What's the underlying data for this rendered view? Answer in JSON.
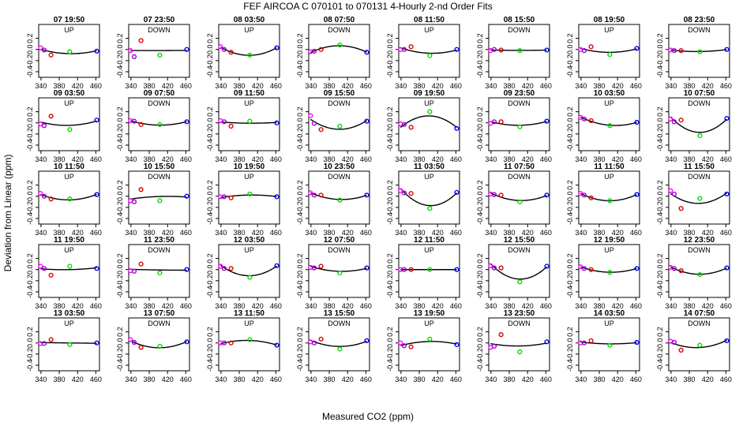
{
  "chart_data": {
    "type": "scatter",
    "title": "FEF   AIRCOA C   070101 to 070131   4-Hourly 2-nd Order Fits",
    "xlabel": "Measured CO2 (ppm)",
    "ylabel": "Deviation from Linear (ppm)",
    "xlim": [
      335,
      468
    ],
    "ylim": [
      -0.5,
      0.45
    ],
    "xticks": [
      340,
      380,
      420,
      460
    ],
    "yticks": [
      -0.4,
      -0.2,
      0.0,
      0.2
    ],
    "xtick_labels": [
      "340",
      "380",
      "420",
      "460"
    ],
    "ytick_labels": [
      "-0.4",
      "-0.2",
      "0.0",
      "0.2"
    ],
    "point_x": [
      339,
      347,
      362,
      403,
      462
    ],
    "point_colors": [
      "#ff00ff",
      "#9900cc",
      "#dd0000",
      "#00dd00",
      "#0000ee"
    ],
    "panels": [
      {
        "title": "07 19:50",
        "dir": "UP",
        "y": [
          0.03,
          -0.01,
          -0.1,
          -0.04,
          -0.03
        ]
      },
      {
        "title": "07 23:50",
        "dir": "DOWN",
        "y": [
          -0.02,
          -0.13,
          0.16,
          -0.1,
          0.0
        ]
      },
      {
        "title": "08 03:50",
        "dir": "UP",
        "y": [
          0.05,
          0.0,
          -0.05,
          -0.1,
          0.03
        ]
      },
      {
        "title": "08 07:50",
        "dir": "DOWN",
        "y": [
          -0.04,
          -0.03,
          0.0,
          0.08,
          -0.05
        ]
      },
      {
        "title": "08 11:50",
        "dir": "UP",
        "y": [
          0.0,
          0.0,
          0.05,
          -0.11,
          0.0
        ]
      },
      {
        "title": "08 15:50",
        "dir": "DOWN",
        "y": [
          -0.02,
          0.0,
          -0.01,
          -0.02,
          -0.01
        ]
      },
      {
        "title": "08 19:50",
        "dir": "UP",
        "y": [
          0.0,
          -0.02,
          0.05,
          -0.09,
          0.02
        ]
      },
      {
        "title": "08 23:50",
        "dir": "DOWN",
        "y": [
          -0.01,
          -0.02,
          -0.02,
          -0.04,
          0.0
        ]
      },
      {
        "title": "09 03:50",
        "dir": "UP",
        "y": [
          -0.02,
          -0.05,
          0.12,
          -0.12,
          0.05
        ]
      },
      {
        "title": "09 07:50",
        "dir": "DOWN",
        "y": [
          0.04,
          0.03,
          -0.03,
          -0.03,
          0.02
        ]
      },
      {
        "title": "09 11:50",
        "dir": "UP",
        "y": [
          0.04,
          0.02,
          -0.06,
          0.03,
          0.0
        ]
      },
      {
        "title": "09 15:50",
        "dir": "DOWN",
        "y": [
          0.13,
          -0.01,
          -0.12,
          -0.06,
          0.03
        ]
      },
      {
        "title": "09 19:50",
        "dir": "UP",
        "y": [
          -0.02,
          -0.03,
          -0.08,
          0.2,
          -0.1
        ]
      },
      {
        "title": "09 23:50",
        "dir": "DOWN",
        "y": [
          -0.01,
          0.02,
          0.02,
          -0.07,
          0.03
        ]
      },
      {
        "title": "10 03:50",
        "dir": "UP",
        "y": [
          0.1,
          0.07,
          0.04,
          -0.05,
          0.01
        ]
      },
      {
        "title": "10 07:50",
        "dir": "DOWN",
        "y": [
          0.07,
          0.02,
          0.05,
          -0.23,
          0.08
        ]
      },
      {
        "title": "10 11:50",
        "dir": "UP",
        "y": [
          0.05,
          0.0,
          -0.05,
          -0.05,
          0.03
        ]
      },
      {
        "title": "10 15:50",
        "dir": "DOWN",
        "y": [
          -0.08,
          -0.1,
          0.12,
          -0.08,
          0.0
        ]
      },
      {
        "title": "10 19:50",
        "dir": "UP",
        "y": [
          -0.01,
          -0.01,
          -0.03,
          0.04,
          -0.01
        ]
      },
      {
        "title": "10 23:50",
        "dir": "DOWN",
        "y": [
          0.06,
          0.02,
          0.02,
          -0.07,
          0.02
        ]
      },
      {
        "title": "11 03:50",
        "dir": "UP",
        "y": [
          0.1,
          0.06,
          0.05,
          -0.22,
          0.07
        ]
      },
      {
        "title": "11 07:50",
        "dir": "DOWN",
        "y": [
          0.04,
          0.03,
          0.02,
          -0.1,
          0.02
        ]
      },
      {
        "title": "11 11:50",
        "dir": "UP",
        "y": [
          0.05,
          0.02,
          -0.03,
          -0.08,
          0.03
        ]
      },
      {
        "title": "11 15:50",
        "dir": "DOWN",
        "y": [
          0.1,
          0.04,
          -0.22,
          -0.04,
          0.04
        ]
      },
      {
        "title": "11 19:50",
        "dir": "UP",
        "y": [
          0.06,
          0.02,
          -0.1,
          0.06,
          0.02
        ]
      },
      {
        "title": "11 23:50",
        "dir": "DOWN",
        "y": [
          -0.02,
          -0.03,
          0.1,
          -0.06,
          0.0
        ]
      },
      {
        "title": "12 03:50",
        "dir": "UP",
        "y": [
          0.06,
          0.02,
          0.02,
          -0.14,
          0.07
        ]
      },
      {
        "title": "12 07:50",
        "dir": "DOWN",
        "y": [
          0.04,
          0.03,
          0.06,
          -0.06,
          0.03
        ]
      },
      {
        "title": "12 11:50",
        "dir": "UP",
        "y": [
          0.0,
          0.0,
          0.0,
          0.0,
          0.0
        ]
      },
      {
        "title": "12 15:50",
        "dir": "DOWN",
        "y": [
          0.07,
          0.03,
          0.03,
          -0.22,
          0.06
        ]
      },
      {
        "title": "12 19:50",
        "dir": "UP",
        "y": [
          0.05,
          0.02,
          0.0,
          -0.05,
          0.02
        ]
      },
      {
        "title": "12 23:50",
        "dir": "DOWN",
        "y": [
          0.04,
          0.02,
          -0.02,
          -0.09,
          0.03
        ]
      },
      {
        "title": "13 03:50",
        "dir": "UP",
        "y": [
          -0.01,
          -0.01,
          0.06,
          -0.03,
          0.0
        ]
      },
      {
        "title": "13 07:50",
        "dir": "DOWN",
        "y": [
          0.06,
          0.01,
          -0.08,
          -0.06,
          0.02
        ]
      },
      {
        "title": "13 11:50",
        "dir": "UP",
        "y": [
          0.0,
          0.0,
          0.0,
          0.06,
          -0.04
        ]
      },
      {
        "title": "13 15:50",
        "dir": "DOWN",
        "y": [
          0.02,
          0.0,
          0.07,
          -0.11,
          0.04
        ]
      },
      {
        "title": "13 19:50",
        "dir": "UP",
        "y": [
          0.0,
          -0.05,
          -0.07,
          0.07,
          -0.03
        ]
      },
      {
        "title": "13 23:50",
        "dir": "DOWN",
        "y": [
          -0.08,
          -0.06,
          0.15,
          -0.16,
          0.02
        ]
      },
      {
        "title": "14 03:50",
        "dir": "UP",
        "y": [
          0.0,
          0.0,
          0.04,
          -0.04,
          0.01
        ]
      },
      {
        "title": "14 07:50",
        "dir": "DOWN",
        "y": [
          0.03,
          0.01,
          -0.13,
          -0.04,
          0.04
        ]
      }
    ]
  }
}
